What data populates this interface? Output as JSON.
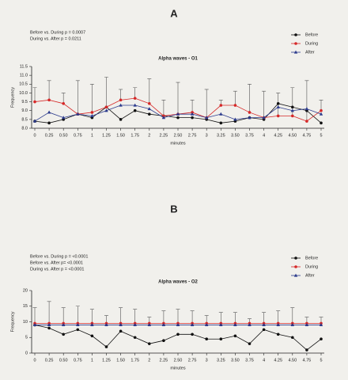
{
  "chart_data": [
    {
      "type": "line",
      "panel_label": "A",
      "title": "Alpha waves - O1",
      "annotations": [
        "Before vs. During p = 0.0007",
        "During vs. After p = 0.0211"
      ],
      "xlabel": "minutes",
      "ylabel": "Frequency",
      "categories": [
        "0",
        "0.25",
        "0.50",
        "0.75",
        "1",
        "1.25",
        "1.50",
        "1.75",
        "2",
        "2.25",
        "2.50",
        "2.75",
        "3",
        "3.25",
        "3.50",
        "3.75",
        "4",
        "4.25",
        "4.50",
        "4.75",
        "5"
      ],
      "series": [
        {
          "name": "Before",
          "color": "#111111",
          "marker": "circle",
          "values": [
            8.4,
            8.3,
            8.5,
            8.8,
            8.6,
            9.2,
            8.5,
            9.0,
            8.8,
            8.7,
            8.6,
            8.6,
            8.5,
            8.3,
            8.4,
            8.6,
            8.5,
            9.4,
            9.2,
            9.0,
            8.3
          ]
        },
        {
          "name": "During",
          "color": "#d62828",
          "marker": "circle",
          "values": [
            9.5,
            9.6,
            9.4,
            8.8,
            8.9,
            9.2,
            9.6,
            9.7,
            9.4,
            8.7,
            8.8,
            8.9,
            8.6,
            9.3,
            9.3,
            8.9,
            8.6,
            8.7,
            8.7,
            8.4,
            9.0
          ],
          "errors": [
            0.8,
            1.1,
            0.6,
            1.9,
            1.6,
            1.7,
            0.6,
            0.6,
            1.4,
            0.9,
            1.8,
            0.7,
            1.6,
            0.3,
            0.8,
            1.6,
            1.5,
            1.3,
            1.6,
            2.3,
            0.6
          ]
        },
        {
          "name": "After",
          "color": "#2b3a8c",
          "marker": "triangle",
          "values": [
            8.4,
            8.9,
            8.6,
            8.8,
            8.7,
            9.0,
            9.3,
            9.3,
            9.1,
            8.6,
            8.8,
            8.8,
            8.6,
            8.8,
            8.5,
            8.6,
            8.6,
            9.2,
            9.0,
            9.1,
            8.8
          ]
        }
      ],
      "ylim": [
        8,
        11.5
      ],
      "yticks": [
        {
          "value": 8,
          "label": "8.0"
        },
        8.5,
        {
          "value": 9,
          "label": "9.0"
        },
        9.5,
        {
          "value": 10,
          "label": "10.0"
        },
        10.5,
        {
          "value": 11,
          "label": "11.0"
        },
        11.5
      ]
    },
    {
      "type": "line",
      "panel_label": "B",
      "title": "Alpha waves - O2",
      "annotations": [
        "Before vs. During p = <0.0001",
        "Before vs.  After p= <0.0001",
        "During vs. After p = <0.0001"
      ],
      "xlabel": "minutes",
      "ylabel": "Frequency",
      "categories": [
        "0",
        "0.25",
        "0.50",
        "0.75",
        "1",
        "1.25",
        "1.50",
        "1.75",
        "2",
        "2.25",
        "2.50",
        "2.75",
        "3",
        "3.25",
        "3.50",
        "3.75",
        "4",
        "4.25",
        "4.50",
        "4.75",
        "5"
      ],
      "series": [
        {
          "name": "Before",
          "color": "#111111",
          "marker": "circle",
          "values": [
            9,
            8,
            6,
            7.5,
            5.5,
            2,
            7,
            5,
            3,
            4,
            6,
            6,
            4.5,
            4.5,
            5.5,
            3,
            7.5,
            6,
            5,
            1,
            4.5
          ]
        },
        {
          "name": "During",
          "color": "#d62828",
          "marker": "circle",
          "values": [
            9.5,
            9.5,
            9.5,
            9.5,
            9.5,
            9.5,
            9.5,
            9.5,
            9.5,
            9.5,
            9.5,
            9.5,
            9.5,
            9.5,
            9.5,
            9.5,
            9.5,
            9.5,
            9.5,
            9.5,
            9.5
          ],
          "errors": [
            5,
            7,
            5,
            5.5,
            4.5,
            2.5,
            5,
            4.5,
            2,
            4,
            4.5,
            4,
            2.5,
            3.5,
            3.5,
            1.5,
            3.5,
            4,
            5,
            2,
            2
          ]
        },
        {
          "name": "After",
          "color": "#2b3a8c",
          "marker": "triangle",
          "values": [
            9,
            9,
            9,
            9,
            9,
            9,
            9,
            9,
            9,
            9,
            9,
            9,
            9,
            9,
            9,
            9,
            9,
            9,
            9,
            9,
            9
          ]
        }
      ],
      "ylim": [
        0,
        20
      ],
      "yticks": [
        0,
        5,
        10,
        15,
        20
      ]
    }
  ]
}
